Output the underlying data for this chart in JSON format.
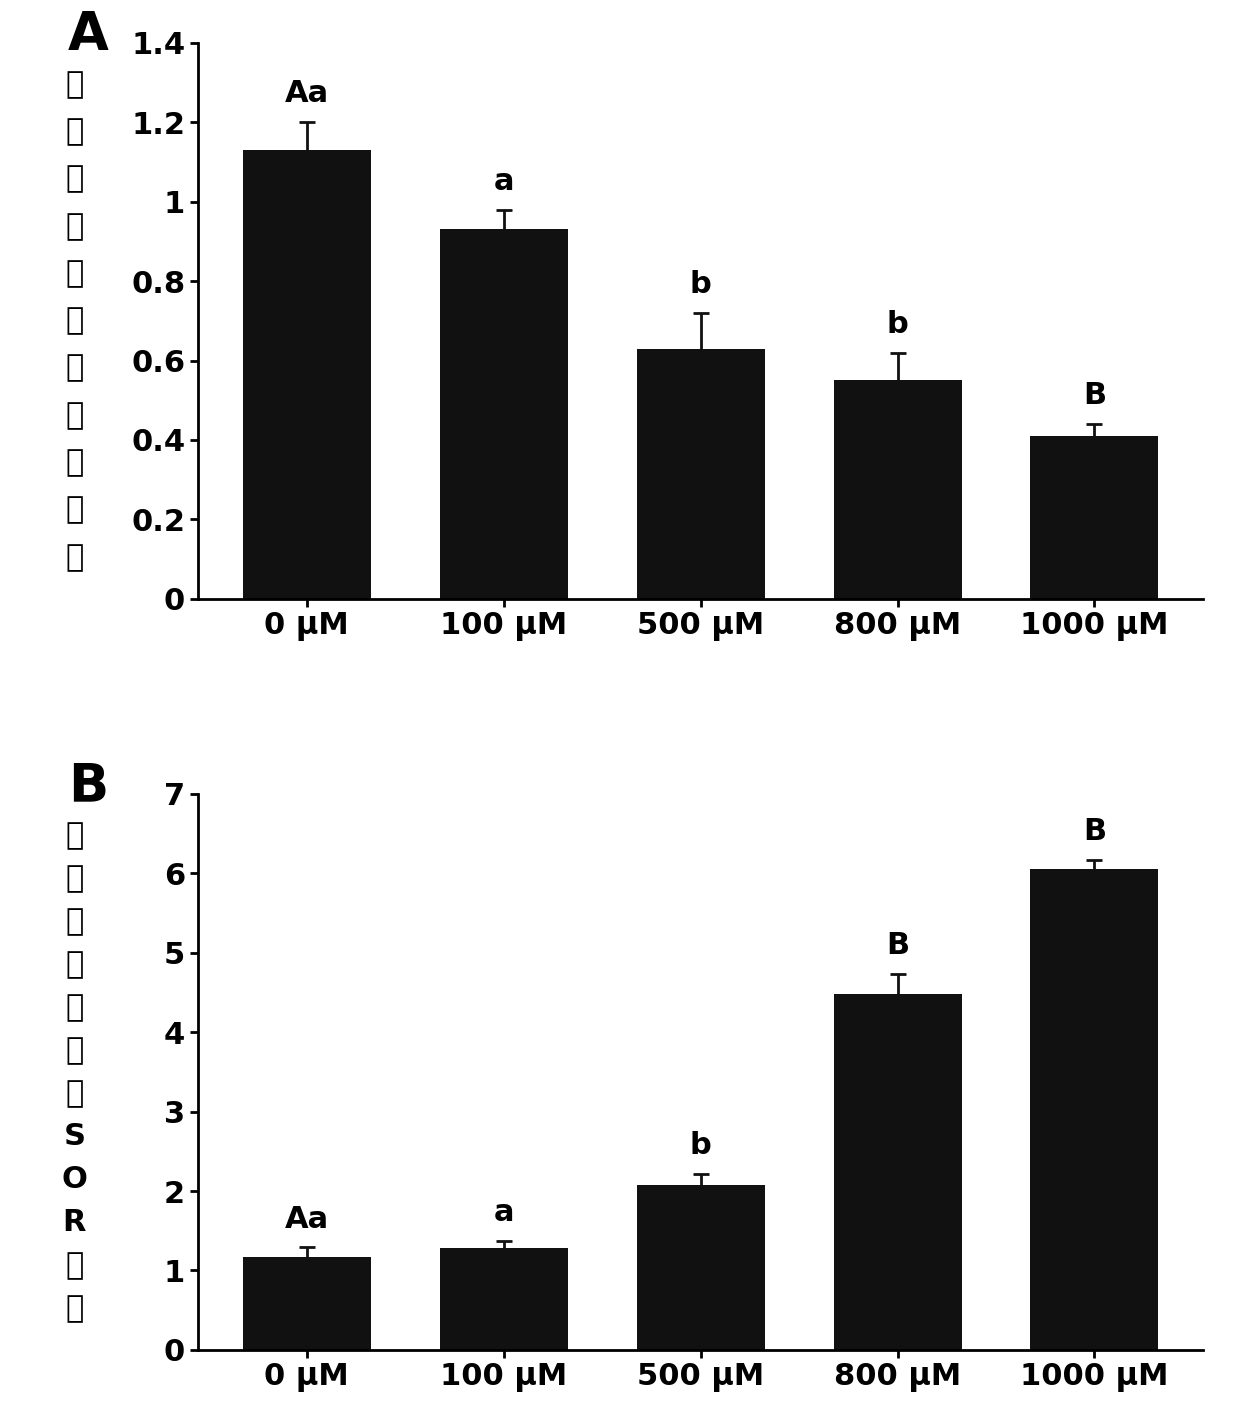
{
  "panel_A": {
    "categories": [
      "0 μM",
      "100 μM",
      "500 μM",
      "800 μM",
      "1000 μM"
    ],
    "values": [
      1.13,
      0.93,
      0.63,
      0.55,
      0.41
    ],
    "errors": [
      0.07,
      0.05,
      0.09,
      0.07,
      0.03
    ],
    "labels": [
      "Aa",
      "a",
      "b",
      "b",
      "B"
    ],
    "ylabel_chars": [
      "量",
      "达",
      "表",
      "对",
      "相",
      "位",
      "电",
      "膜",
      "体",
      "粒",
      "线"
    ],
    "ylim": [
      0,
      1.4
    ],
    "yticks": [
      0,
      0.2,
      0.4,
      0.6,
      0.8,
      1.0,
      1.2,
      1.4
    ],
    "ytick_labels": [
      "0",
      "0.2",
      "0.4",
      "0.6",
      "0.8",
      "1",
      "1.2",
      "1.4"
    ],
    "panel_label": "A"
  },
  "panel_B": {
    "categories": [
      "0 μM",
      "100 μM",
      "500 μM",
      "800 μM",
      "1000 μM"
    ],
    "values": [
      1.17,
      1.28,
      2.07,
      4.48,
      6.05
    ],
    "errors": [
      0.12,
      0.09,
      0.15,
      0.25,
      0.12
    ],
    "labels": [
      "Aa",
      "a",
      "b",
      "B",
      "B"
    ],
    "ylabel_chars": [
      "量",
      "达",
      "表",
      "对",
      "相",
      "光",
      "荧",
      "S",
      "O",
      "R",
      "内",
      "胞"
    ],
    "ylim": [
      0,
      7
    ],
    "yticks": [
      0,
      1,
      2,
      3,
      4,
      5,
      6,
      7
    ],
    "ytick_labels": [
      "0",
      "1",
      "2",
      "3",
      "4",
      "5",
      "6",
      "7"
    ],
    "panel_label": "B"
  },
  "bar_color": "#111111",
  "bar_width": 0.65,
  "error_color": "#111111",
  "tick_fontsize": 22,
  "panel_label_fontsize": 38,
  "annotation_fontsize": 22,
  "background_color": "#ffffff"
}
